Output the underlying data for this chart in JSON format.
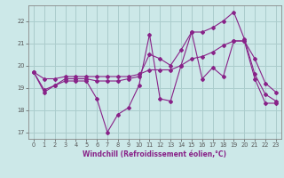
{
  "xlabel": "Windchill (Refroidissement éolien,°C)",
  "background_color": "#cce8e8",
  "grid_color": "#aacccc",
  "line_color": "#882288",
  "xlim": [
    -0.5,
    23.5
  ],
  "ylim": [
    16.7,
    22.7
  ],
  "yticks": [
    17,
    18,
    19,
    20,
    21,
    22
  ],
  "xticks": [
    0,
    1,
    2,
    3,
    4,
    5,
    6,
    7,
    8,
    9,
    10,
    11,
    12,
    13,
    14,
    15,
    16,
    17,
    18,
    19,
    20,
    21,
    22,
    23
  ],
  "series": [
    [
      19.7,
      18.8,
      19.1,
      19.3,
      19.3,
      19.3,
      18.5,
      17.0,
      17.8,
      18.1,
      19.1,
      21.4,
      18.5,
      18.4,
      20.0,
      21.5,
      19.4,
      19.9,
      19.5,
      21.1,
      21.1,
      19.4,
      18.3,
      18.3
    ],
    [
      19.7,
      19.4,
      19.4,
      19.5,
      19.5,
      19.5,
      19.5,
      19.5,
      19.5,
      19.5,
      19.6,
      19.8,
      19.8,
      19.8,
      20.0,
      20.3,
      20.4,
      20.6,
      20.9,
      21.1,
      21.1,
      20.3,
      19.2,
      18.8
    ],
    [
      19.7,
      18.9,
      19.1,
      19.4,
      19.4,
      19.4,
      19.3,
      19.3,
      19.3,
      19.4,
      19.5,
      20.5,
      20.3,
      20.0,
      20.7,
      21.5,
      21.5,
      21.7,
      22.0,
      22.4,
      21.2,
      19.6,
      18.7,
      18.4
    ]
  ]
}
